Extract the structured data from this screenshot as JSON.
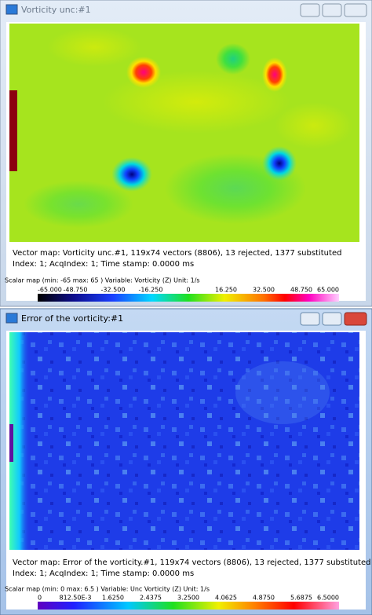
{
  "windows": [
    {
      "title": "Vorticity unc:#1",
      "info": [
        "Vector map: Vorticity unc.#1, 119x74 vectors (8806), 13 rejected, 1377 substituted",
        "Index: 1; AcqIndex: 1; Time stamp: 0.0000 ms"
      ],
      "scalar": "Scalar map (min: -65 max: 65 ) Variable: Vorticity (Z) Unit: 1/s",
      "colorbar_labels": [
        "-65.000",
        "-48.750",
        "-32.500",
        "-16.250",
        "0",
        "16.250",
        "32.500",
        "48.750",
        "65.000"
      ]
    },
    {
      "title": "Error of the vorticity:#1",
      "info": [
        "Vector map: Error of the vorticity.#1, 119x74 vectors (8806), 13 rejected, 1377 substituted",
        "Index: 1; AcqIndex: 1; Time stamp: 0.0000 ms"
      ],
      "scalar": "Scalar map (min: 0 max: 6.5 ) Variable: Unc Vorticity (Z) Unit: 1/s",
      "colorbar_labels": [
        "0",
        "812.50E-3",
        "1.6250",
        "2.4375",
        "3.2500",
        "4.0625",
        "4.8750",
        "5.6875",
        "6.5000"
      ]
    }
  ]
}
